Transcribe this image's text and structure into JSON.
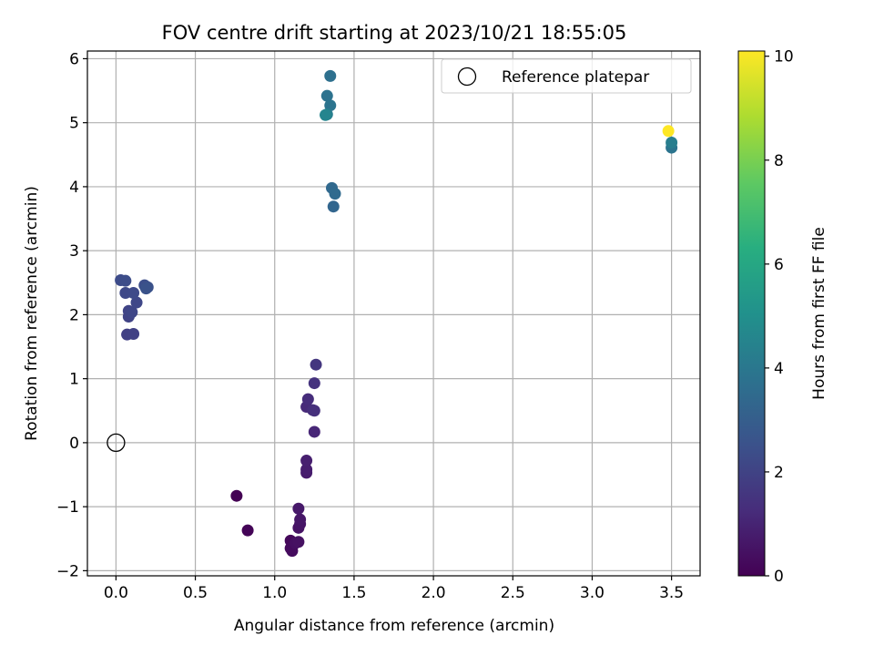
{
  "chart_data": {
    "type": "scatter",
    "title": "FOV centre drift starting at 2023/10/21 18:55:05",
    "xlabel": "Angular distance from reference (arcmin)",
    "ylabel": "Rotation from reference (arcmin)",
    "xlim": [
      -0.18,
      3.68
    ],
    "ylim": [
      -2.08,
      6.12
    ],
    "xticks": [
      "0.0",
      "0.5",
      "1.0",
      "1.5",
      "2.0",
      "2.5",
      "3.0",
      "3.5"
    ],
    "xtick_values": [
      0,
      0.5,
      1.0,
      1.5,
      2.0,
      2.5,
      3.0,
      3.5
    ],
    "yticks": [
      "−2",
      "−1",
      "0",
      "1",
      "2",
      "3",
      "4",
      "5",
      "6"
    ],
    "ytick_values": [
      -2,
      -1,
      0,
      1,
      2,
      3,
      4,
      5,
      6
    ],
    "grid": true,
    "colormap": "viridis",
    "colorbar": {
      "label": "Hours from first FF file",
      "range": [
        0,
        10.1
      ],
      "ticks": [
        "0",
        "2",
        "4",
        "6",
        "8",
        "10"
      ],
      "tick_values": [
        0,
        2,
        4,
        6,
        8,
        10
      ]
    },
    "legend": {
      "position": "top-right",
      "entries": [
        "Reference platepar"
      ]
    },
    "reference_point": {
      "x": 0,
      "y": 0
    },
    "points": [
      {
        "x": 0.76,
        "y": -0.83,
        "c": 0.0
      },
      {
        "x": 0.83,
        "y": -1.37,
        "c": 0.1
      },
      {
        "x": 1.1,
        "y": -1.53,
        "c": 0.2
      },
      {
        "x": 1.1,
        "y": -1.65,
        "c": 0.25
      },
      {
        "x": 1.11,
        "y": -1.69,
        "c": 0.3
      },
      {
        "x": 1.13,
        "y": -1.57,
        "c": 0.4
      },
      {
        "x": 1.15,
        "y": -1.55,
        "c": 0.45
      },
      {
        "x": 1.15,
        "y": -1.33,
        "c": 0.5
      },
      {
        "x": 1.16,
        "y": -1.27,
        "c": 0.55
      },
      {
        "x": 1.16,
        "y": -1.2,
        "c": 0.6
      },
      {
        "x": 1.15,
        "y": -1.03,
        "c": 0.65
      },
      {
        "x": 1.2,
        "y": -0.47,
        "c": 0.75
      },
      {
        "x": 1.2,
        "y": -0.42,
        "c": 0.8
      },
      {
        "x": 1.2,
        "y": -0.28,
        "c": 0.85
      },
      {
        "x": 1.25,
        "y": 0.17,
        "c": 1.1
      },
      {
        "x": 1.2,
        "y": 0.56,
        "c": 1.2
      },
      {
        "x": 1.21,
        "y": 0.68,
        "c": 1.3
      },
      {
        "x": 1.24,
        "y": 0.51,
        "c": 1.35
      },
      {
        "x": 1.25,
        "y": 0.5,
        "c": 1.4
      },
      {
        "x": 1.25,
        "y": 0.93,
        "c": 1.5
      },
      {
        "x": 1.26,
        "y": 1.22,
        "c": 1.6
      },
      {
        "x": 0.07,
        "y": 1.69,
        "c": 1.9
      },
      {
        "x": 0.11,
        "y": 1.7,
        "c": 1.95
      },
      {
        "x": 0.08,
        "y": 1.97,
        "c": 2.0
      },
      {
        "x": 0.08,
        "y": 2.06,
        "c": 2.05
      },
      {
        "x": 0.1,
        "y": 2.04,
        "c": 2.1
      },
      {
        "x": 0.13,
        "y": 2.19,
        "c": 2.15
      },
      {
        "x": 0.06,
        "y": 2.34,
        "c": 2.2
      },
      {
        "x": 0.11,
        "y": 2.34,
        "c": 2.25
      },
      {
        "x": 0.03,
        "y": 2.54,
        "c": 2.3
      },
      {
        "x": 0.06,
        "y": 2.53,
        "c": 2.35
      },
      {
        "x": 0.18,
        "y": 2.46,
        "c": 2.4
      },
      {
        "x": 0.2,
        "y": 2.43,
        "c": 2.5
      },
      {
        "x": 0.19,
        "y": 2.41,
        "c": 2.55
      },
      {
        "x": 1.37,
        "y": 3.69,
        "c": 3.3
      },
      {
        "x": 1.36,
        "y": 3.98,
        "c": 3.4
      },
      {
        "x": 1.38,
        "y": 3.89,
        "c": 3.5
      },
      {
        "x": 1.35,
        "y": 5.73,
        "c": 3.7
      },
      {
        "x": 1.33,
        "y": 5.42,
        "c": 3.8
      },
      {
        "x": 1.35,
        "y": 5.27,
        "c": 3.9
      },
      {
        "x": 1.33,
        "y": 5.13,
        "c": 4.3
      },
      {
        "x": 1.32,
        "y": 5.12,
        "c": 4.6
      },
      {
        "x": 3.5,
        "y": 4.61,
        "c": 3.9
      },
      {
        "x": 3.5,
        "y": 4.69,
        "c": 4.3
      },
      {
        "x": 3.48,
        "y": 4.87,
        "c": 10.1
      }
    ]
  }
}
